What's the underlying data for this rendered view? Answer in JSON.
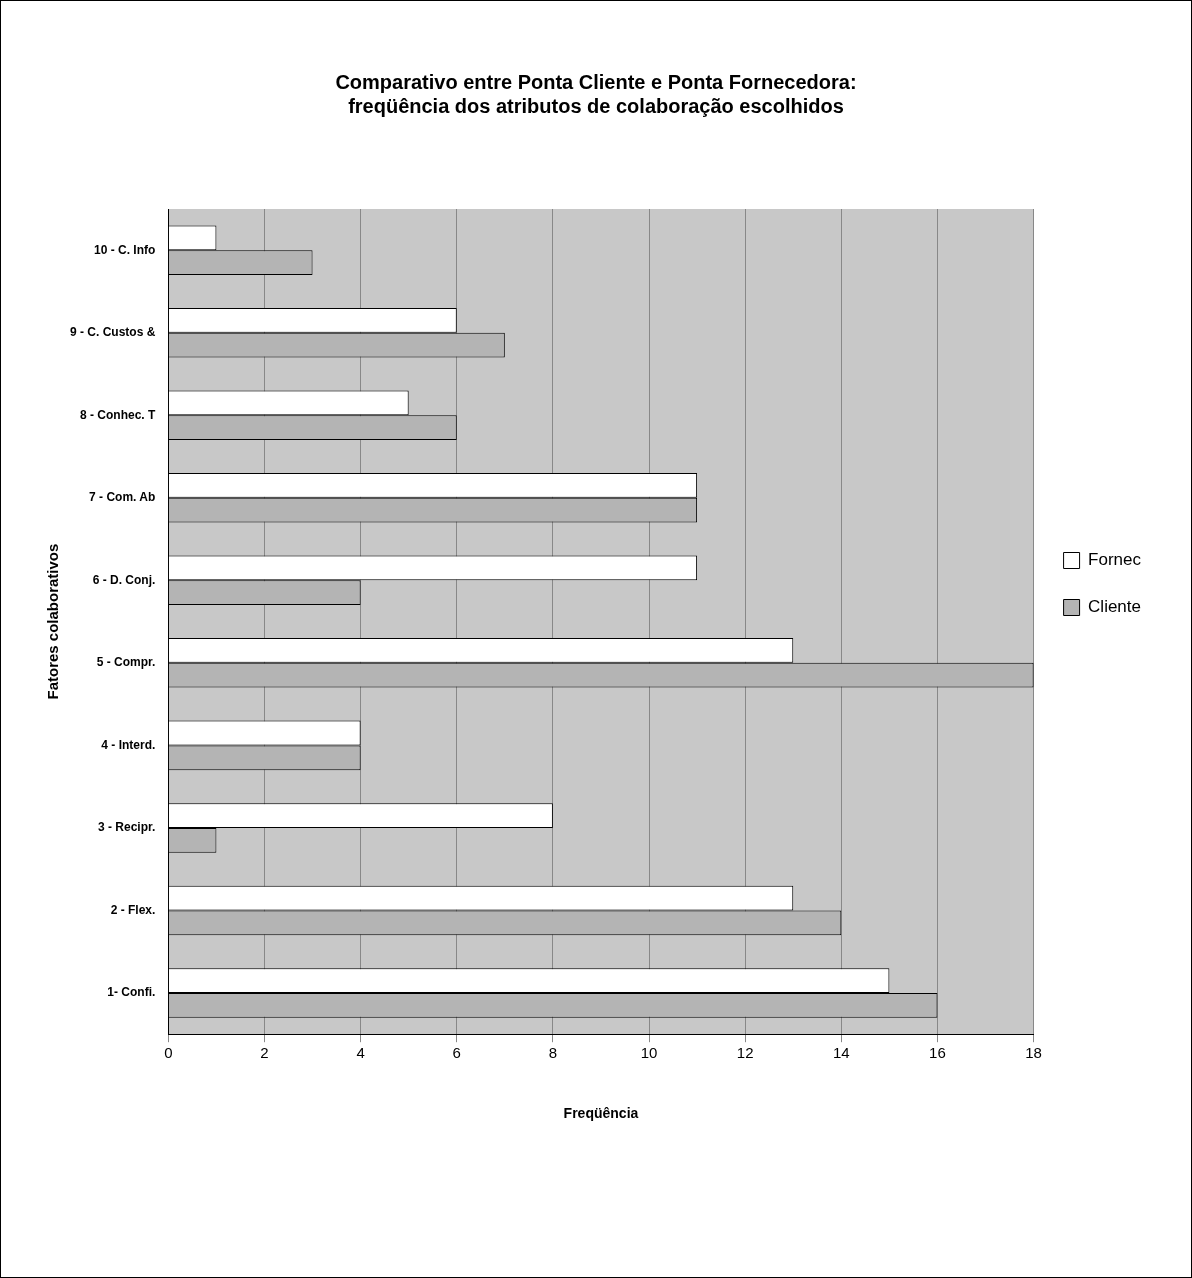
{
  "chart_data": {
    "type": "bar",
    "orientation": "horizontal",
    "title": "Comparativo entre Ponta Cliente e Ponta Fornecedora:\nfreqüência dos atributos de colaboração escolhidos",
    "xlabel": "Freqüência",
    "ylabel": "Fatores colaborativos",
    "categories": [
      "10 - C. Info",
      "9 - C. Custos &",
      "8 - Conhec. T",
      "7 - Com. Ab",
      "6 - D. Conj.",
      "5 - Compr.",
      "4 - Interd.",
      "3 - Recipr.",
      "2 - Flex.",
      "1- Confi."
    ],
    "series": [
      {
        "name": "Fornec",
        "color": "#ffffff",
        "values": [
          1,
          6,
          5,
          11,
          11,
          13,
          4,
          8,
          13,
          15
        ]
      },
      {
        "name": "Cliente",
        "color": "#b4b4b4",
        "values": [
          3,
          7,
          6,
          11,
          4,
          18,
          4,
          1,
          14,
          16
        ]
      }
    ],
    "xlim": [
      0,
      18
    ],
    "xticks": [
      0,
      2,
      4,
      6,
      8,
      10,
      12,
      14,
      16,
      18
    ],
    "grid": "x",
    "legend": "right"
  }
}
